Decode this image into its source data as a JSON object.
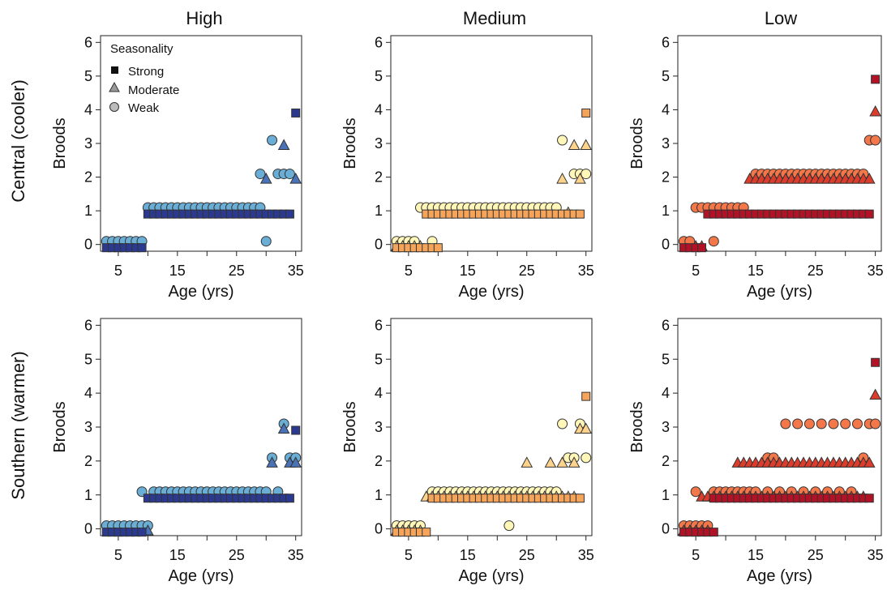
{
  "figure": {
    "column_titles": [
      "High",
      "Medium",
      "Low"
    ],
    "row_labels": [
      "Central (cooler)",
      "Southern (warmer)"
    ],
    "legend": {
      "title": "Seasonality",
      "items": [
        {
          "label": "Strong",
          "shape": "square"
        },
        {
          "label": "Moderate",
          "shape": "triangle"
        },
        {
          "label": "Weak",
          "shape": "circle"
        }
      ]
    }
  },
  "palettes": {
    "High": {
      "Strong": "#2b3a8f",
      "Moderate": "#4a72b6",
      "Weak": "#6aaed6"
    },
    "Medium": {
      "Strong": "#f5a45a",
      "Moderate": "#fdd28a",
      "Weak": "#fff6b8"
    },
    "Low": {
      "Strong": "#b11226",
      "Moderate": "#dc3c2c",
      "Weak": "#f4774a"
    }
  },
  "chart_data": [
    {
      "type": "scatter",
      "row": "Central (cooler)",
      "column": "High",
      "xlabel": "Age (yrs)",
      "ylabel": "Broods",
      "xlim": [
        2,
        36
      ],
      "ylim": [
        -0.2,
        6.2
      ],
      "xticks": [
        5,
        15,
        25,
        35
      ],
      "yticks": [
        0,
        1,
        2,
        3,
        4,
        5,
        6
      ],
      "series": [
        {
          "name": "Strong",
          "segments": [
            {
              "x0": 3,
              "x1": 9,
              "y": 0
            },
            {
              "x0": 10,
              "x1": 34,
              "y": 1
            }
          ],
          "points": [
            {
              "x": 35,
              "y": 4
            }
          ]
        },
        {
          "name": "Moderate",
          "segments": [],
          "points": [
            {
              "x": 30,
              "y": 2
            },
            {
              "x": 33,
              "y": 3
            },
            {
              "x": 35,
              "y": 2
            }
          ]
        },
        {
          "name": "Weak",
          "segments": [
            {
              "x0": 3,
              "x1": 9,
              "y": 0
            },
            {
              "x0": 10,
              "x1": 29,
              "y": 1
            }
          ],
          "points": [
            {
              "x": 29,
              "y": 2
            },
            {
              "x": 30,
              "y": 0
            },
            {
              "x": 31,
              "y": 3
            },
            {
              "x": 32,
              "y": 2
            },
            {
              "x": 33,
              "y": 2
            },
            {
              "x": 34,
              "y": 2
            }
          ]
        }
      ]
    },
    {
      "type": "scatter",
      "row": "Central (cooler)",
      "column": "Medium",
      "xlabel": "Age (yrs)",
      "ylabel": "Broods",
      "xlim": [
        2,
        36
      ],
      "ylim": [
        -0.2,
        6.2
      ],
      "xticks": [
        5,
        15,
        25,
        35
      ],
      "yticks": [
        0,
        1,
        2,
        3,
        4,
        5,
        6
      ],
      "series": [
        {
          "name": "Strong",
          "segments": [
            {
              "x0": 3,
              "x1": 9,
              "y": 0
            },
            {
              "x0": 8,
              "x1": 34,
              "y": 1
            }
          ],
          "points": [
            {
              "x": 10,
              "y": 0
            },
            {
              "x": 35,
              "y": 4
            }
          ]
        },
        {
          "name": "Moderate",
          "segments": [
            {
              "x0": 3,
              "x1": 7,
              "y": 0
            }
          ],
          "points": [
            {
              "x": 31,
              "y": 2
            },
            {
              "x": 32,
              "y": 1
            },
            {
              "x": 33,
              "y": 3
            },
            {
              "x": 34,
              "y": 2
            },
            {
              "x": 35,
              "y": 3
            }
          ]
        },
        {
          "name": "Weak",
          "segments": [
            {
              "x0": 3,
              "x1": 6,
              "y": 0
            },
            {
              "x0": 7,
              "x1": 30,
              "y": 1
            }
          ],
          "points": [
            {
              "x": 9,
              "y": 0
            },
            {
              "x": 31,
              "y": 3
            },
            {
              "x": 33,
              "y": 2
            },
            {
              "x": 34,
              "y": 2
            },
            {
              "x": 35,
              "y": 2
            }
          ]
        }
      ]
    },
    {
      "type": "scatter",
      "row": "Central (cooler)",
      "column": "Low",
      "xlabel": "Age (yrs)",
      "ylabel": "Broods",
      "xlim": [
        2,
        36
      ],
      "ylim": [
        -0.2,
        6.2
      ],
      "xticks": [
        5,
        15,
        25,
        35
      ],
      "yticks": [
        0,
        1,
        2,
        3,
        4,
        5,
        6
      ],
      "series": [
        {
          "name": "Strong",
          "segments": [
            {
              "x0": 3,
              "x1": 6,
              "y": 0
            },
            {
              "x0": 7,
              "x1": 34,
              "y": 1
            }
          ],
          "points": [
            {
              "x": 35,
              "y": 5
            }
          ]
        },
        {
          "name": "Moderate",
          "segments": [
            {
              "x0": 5,
              "x1": 6,
              "y": 0
            },
            {
              "x0": 14,
              "x1": 34,
              "y": 2
            }
          ],
          "points": [
            {
              "x": 35,
              "y": 4
            }
          ]
        },
        {
          "name": "Weak",
          "segments": [
            {
              "x0": 5,
              "x1": 13,
              "y": 1
            },
            {
              "x0": 15,
              "x1": 33,
              "y": 2
            }
          ],
          "points": [
            {
              "x": 3,
              "y": 0
            },
            {
              "x": 4,
              "y": 0
            },
            {
              "x": 8,
              "y": 0
            },
            {
              "x": 34,
              "y": 3
            },
            {
              "x": 35,
              "y": 3
            }
          ]
        }
      ]
    },
    {
      "type": "scatter",
      "row": "Southern (warmer)",
      "column": "High",
      "xlabel": "Age (yrs)",
      "ylabel": "Broods",
      "xlim": [
        2,
        36
      ],
      "ylim": [
        -0.2,
        6.2
      ],
      "xticks": [
        5,
        15,
        25,
        35
      ],
      "yticks": [
        0,
        1,
        2,
        3,
        4,
        5,
        6
      ],
      "series": [
        {
          "name": "Strong",
          "segments": [
            {
              "x0": 3,
              "x1": 9,
              "y": 0
            },
            {
              "x0": 10,
              "x1": 34,
              "y": 1
            }
          ],
          "points": [
            {
              "x": 35,
              "y": 3
            }
          ]
        },
        {
          "name": "Moderate",
          "segments": [],
          "points": [
            {
              "x": 10,
              "y": 0
            },
            {
              "x": 31,
              "y": 2
            },
            {
              "x": 33,
              "y": 3
            },
            {
              "x": 34,
              "y": 2
            },
            {
              "x": 35,
              "y": 2
            }
          ]
        },
        {
          "name": "Weak",
          "segments": [
            {
              "x0": 3,
              "x1": 9,
              "y": 0
            },
            {
              "x0": 11,
              "x1": 30,
              "y": 1
            }
          ],
          "points": [
            {
              "x": 9,
              "y": 1
            },
            {
              "x": 10,
              "y": 0
            },
            {
              "x": 31,
              "y": 2
            },
            {
              "x": 32,
              "y": 1
            },
            {
              "x": 33,
              "y": 3
            },
            {
              "x": 34,
              "y": 2
            },
            {
              "x": 35,
              "y": 2
            }
          ]
        }
      ]
    },
    {
      "type": "scatter",
      "row": "Southern (warmer)",
      "column": "Medium",
      "xlabel": "Age (yrs)",
      "ylabel": "Broods",
      "xlim": [
        2,
        36
      ],
      "ylim": [
        -0.2,
        6.2
      ],
      "xticks": [
        5,
        15,
        25,
        35
      ],
      "yticks": [
        0,
        1,
        2,
        3,
        4,
        5,
        6
      ],
      "series": [
        {
          "name": "Strong",
          "segments": [
            {
              "x0": 3,
              "x1": 8,
              "y": 0
            },
            {
              "x0": 9,
              "x1": 34,
              "y": 1
            }
          ],
          "points": [
            {
              "x": 35,
              "y": 4
            }
          ]
        },
        {
          "name": "Moderate",
          "segments": [
            {
              "x0": 3,
              "x1": 7,
              "y": 0
            },
            {
              "x0": 8,
              "x1": 33,
              "y": 1
            }
          ],
          "points": [
            {
              "x": 25,
              "y": 2
            },
            {
              "x": 29,
              "y": 2
            },
            {
              "x": 31,
              "y": 2
            },
            {
              "x": 33,
              "y": 2
            },
            {
              "x": 34,
              "y": 3
            },
            {
              "x": 35,
              "y": 3
            }
          ]
        },
        {
          "name": "Weak",
          "segments": [
            {
              "x0": 3,
              "x1": 7,
              "y": 0
            },
            {
              "x0": 9,
              "x1": 30,
              "y": 1
            }
          ],
          "points": [
            {
              "x": 22,
              "y": 0
            },
            {
              "x": 31,
              "y": 3
            },
            {
              "x": 32,
              "y": 2
            },
            {
              "x": 33,
              "y": 2
            },
            {
              "x": 34,
              "y": 3
            },
            {
              "x": 35,
              "y": 2
            }
          ]
        }
      ]
    },
    {
      "type": "scatter",
      "row": "Southern (warmer)",
      "column": "Low",
      "xlabel": "Age (yrs)",
      "ylabel": "Broods",
      "xlim": [
        2,
        36
      ],
      "ylim": [
        -0.2,
        6.2
      ],
      "xticks": [
        5,
        15,
        25,
        35
      ],
      "yticks": [
        0,
        1,
        2,
        3,
        4,
        5,
        6
      ],
      "series": [
        {
          "name": "Strong",
          "segments": [
            {
              "x0": 3,
              "x1": 7,
              "y": 0
            },
            {
              "x0": 8,
              "x1": 34,
              "y": 1
            }
          ],
          "points": [
            {
              "x": 8,
              "y": 0
            },
            {
              "x": 35,
              "y": 5
            }
          ]
        },
        {
          "name": "Moderate",
          "segments": [
            {
              "x0": 3,
              "x1": 7,
              "y": 0
            },
            {
              "x0": 6,
              "x1": 33,
              "y": 1
            },
            {
              "x0": 12,
              "x1": 34,
              "y": 2
            }
          ],
          "points": [
            {
              "x": 35,
              "y": 4
            }
          ]
        },
        {
          "name": "Weak",
          "segments": [
            {
              "x0": 3,
              "x1": 7,
              "y": 0
            },
            {
              "x0": 8,
              "x1": 15,
              "y": 1
            }
          ],
          "points": [
            {
              "x": 5,
              "y": 1
            },
            {
              "x": 17,
              "y": 1
            },
            {
              "x": 19,
              "y": 1
            },
            {
              "x": 21,
              "y": 1
            },
            {
              "x": 23,
              "y": 1
            },
            {
              "x": 25,
              "y": 1
            },
            {
              "x": 27,
              "y": 1
            },
            {
              "x": 29,
              "y": 1
            },
            {
              "x": 31,
              "y": 1
            },
            {
              "x": 17,
              "y": 2
            },
            {
              "x": 18,
              "y": 2
            },
            {
              "x": 33,
              "y": 2
            },
            {
              "x": 20,
              "y": 3
            },
            {
              "x": 22,
              "y": 3
            },
            {
              "x": 24,
              "y": 3
            },
            {
              "x": 26,
              "y": 3
            },
            {
              "x": 28,
              "y": 3
            },
            {
              "x": 30,
              "y": 3
            },
            {
              "x": 32,
              "y": 3
            },
            {
              "x": 34,
              "y": 3
            },
            {
              "x": 35,
              "y": 3
            }
          ]
        }
      ]
    }
  ]
}
